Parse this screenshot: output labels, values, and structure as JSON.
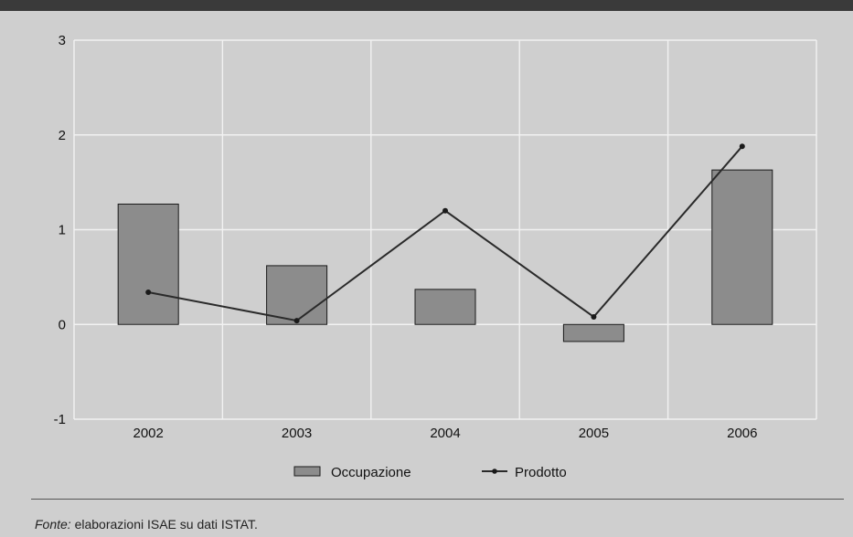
{
  "chart_data": {
    "type": "bar",
    "categories": [
      "2002",
      "2003",
      "2004",
      "2005",
      "2006"
    ],
    "series": [
      {
        "name": "Occupazione",
        "type": "bar",
        "values": [
          1.27,
          0.62,
          0.37,
          -0.18,
          1.63
        ]
      },
      {
        "name": "Prodotto",
        "type": "line",
        "values": [
          0.34,
          0.04,
          1.2,
          0.08,
          1.88
        ]
      }
    ],
    "yticks": [
      "3",
      "2",
      "1",
      "0",
      "-1"
    ],
    "ylim": [
      -1,
      3
    ],
    "grid": true,
    "legend_position": "bottom",
    "colors": {
      "bar": "#8c8c8c",
      "bar_stroke": "#1a1a1a",
      "line": "#2a2a2a",
      "grid": "#f2f2f2",
      "background": "#cfcfcf",
      "header": "#3a3a3a"
    }
  },
  "source": {
    "label": "Fonte:",
    "text": " elaborazioni ISAE su dati ISTAT."
  }
}
